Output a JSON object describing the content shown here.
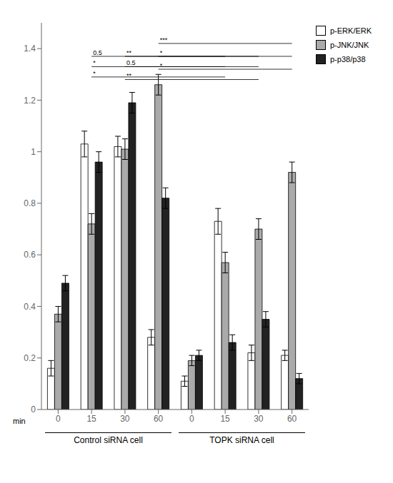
{
  "chart_data": {
    "type": "bar",
    "categories": [
      "0",
      "15",
      "30",
      "60",
      "0",
      "15",
      "30",
      "60"
    ],
    "xlabel": "min",
    "x_group_labels": [
      "Control siRNA cell",
      "TOPK siRNA cell"
    ],
    "series": [
      {
        "name": "p-ERK/ERK",
        "color": "white",
        "values": [
          0.16,
          1.03,
          1.02,
          0.28,
          0.11,
          0.73,
          0.22,
          0.21
        ],
        "errors": [
          0.03,
          0.05,
          0.04,
          0.03,
          0.02,
          0.05,
          0.03,
          0.02
        ]
      },
      {
        "name": "p-JNK/JNK",
        "color": "#aaaaaa",
        "values": [
          0.37,
          0.72,
          1.01,
          1.26,
          0.19,
          0.57,
          0.7,
          0.92
        ],
        "errors": [
          0.03,
          0.04,
          0.04,
          0.04,
          0.02,
          0.04,
          0.04,
          0.04
        ]
      },
      {
        "name": "p-p38/p38",
        "color": "#222222",
        "values": [
          0.49,
          0.96,
          1.19,
          0.82,
          0.21,
          0.26,
          0.35,
          0.12
        ],
        "errors": [
          0.03,
          0.04,
          0.04,
          0.04,
          0.02,
          0.03,
          0.03,
          0.02
        ]
      }
    ],
    "ylim": [
      0,
      1.5
    ],
    "yticks": [
      0,
      0.2,
      0.4,
      0.6,
      0.8,
      1.0,
      1.2,
      1.4
    ],
    "annotations": [
      {
        "from": 1,
        "to": 5,
        "y": 1.29,
        "label": "*"
      },
      {
        "from": 1,
        "to": 5,
        "y": 1.33,
        "label": "*"
      },
      {
        "from": 1,
        "to": 5,
        "y": 1.37,
        "label": "0.5"
      },
      {
        "from": 2,
        "to": 6,
        "y": 1.28,
        "label": "**"
      },
      {
        "from": 2,
        "to": 6,
        "y": 1.33,
        "label": "0.5"
      },
      {
        "from": 2,
        "to": 6,
        "y": 1.37,
        "label": "**"
      },
      {
        "from": 3,
        "to": 7,
        "y": 1.32,
        "label": "*"
      },
      {
        "from": 3,
        "to": 7,
        "y": 1.37,
        "label": "*"
      },
      {
        "from": 3,
        "to": 7,
        "y": 1.42,
        "label": "***"
      }
    ],
    "legend": "right"
  }
}
